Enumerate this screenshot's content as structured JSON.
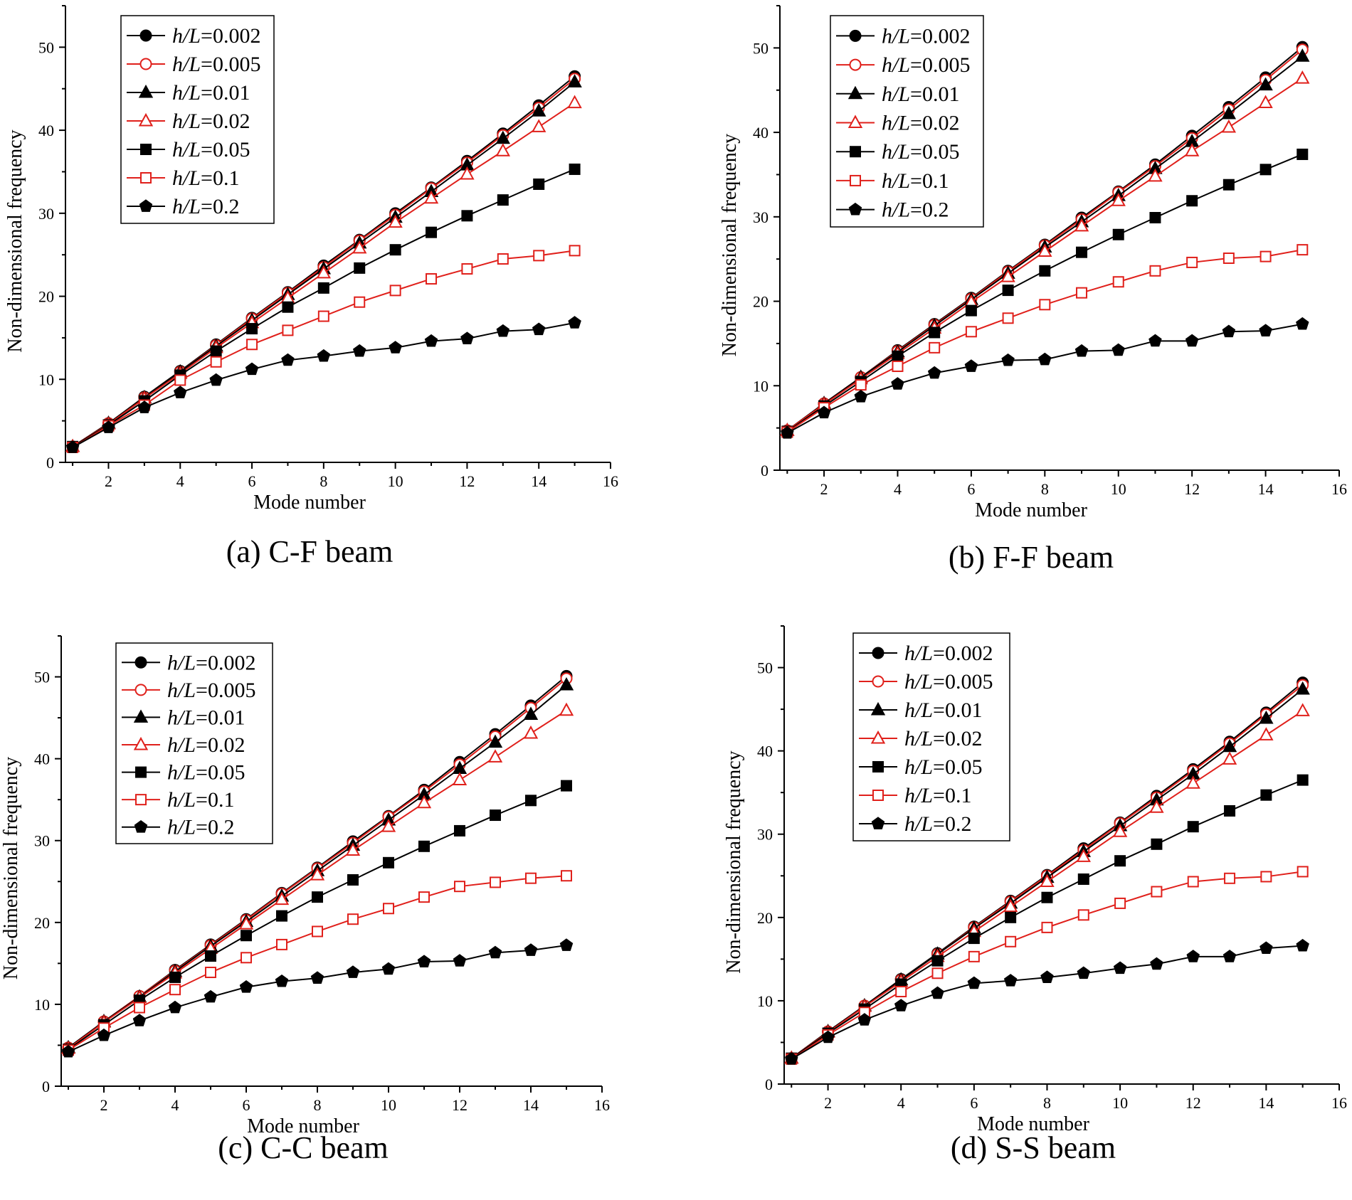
{
  "chart_data": [
    {
      "type": "line",
      "caption": "(a) C-F beam",
      "xlabel": "Mode number",
      "ylabel": "Non-dimensional frequency",
      "xlim": [
        0.8,
        16
      ],
      "ylim": [
        0,
        55
      ],
      "xticks": [
        2,
        4,
        6,
        8,
        10,
        12,
        14,
        16
      ],
      "yticks": [
        0,
        10,
        20,
        30,
        40,
        50
      ],
      "legend_position": "top-left",
      "x": [
        1,
        2,
        3,
        4,
        5,
        6,
        7,
        8,
        9,
        10,
        11,
        12,
        13,
        14,
        15
      ],
      "series": [
        {
          "name_prefix": "h/L",
          "name_value": "=0.002",
          "color": "#000000",
          "marker": "circle",
          "filled": true,
          "values": [
            1.9,
            4.7,
            7.9,
            11.0,
            14.2,
            17.4,
            20.5,
            23.7,
            26.8,
            30.0,
            33.1,
            36.3,
            39.6,
            43.0,
            46.5
          ]
        },
        {
          "name_prefix": "h/L",
          "name_value": "=0.005",
          "color": "#e0201b",
          "marker": "circle",
          "filled": false,
          "values": [
            1.9,
            4.7,
            7.8,
            10.9,
            14.1,
            17.3,
            20.4,
            23.5,
            26.7,
            29.8,
            33.0,
            36.1,
            39.4,
            42.7,
            46.2
          ]
        },
        {
          "name_prefix": "h/L",
          "name_value": "=0.01",
          "color": "#000000",
          "marker": "triangle",
          "filled": true,
          "values": [
            1.9,
            4.7,
            7.8,
            10.9,
            14.0,
            17.1,
            20.2,
            23.3,
            26.4,
            29.5,
            32.6,
            35.8,
            39.0,
            42.3,
            45.8
          ]
        },
        {
          "name_prefix": "h/L",
          "name_value": "=0.02",
          "color": "#e0201b",
          "marker": "triangle",
          "filled": false,
          "values": [
            1.9,
            4.6,
            7.7,
            10.7,
            13.8,
            16.8,
            19.8,
            22.8,
            25.8,
            28.9,
            31.8,
            34.7,
            37.5,
            40.4,
            43.3
          ]
        },
        {
          "name_prefix": "h/L",
          "name_value": "=0.05",
          "color": "#000000",
          "marker": "square",
          "filled": true,
          "values": [
            1.9,
            4.5,
            7.4,
            10.5,
            13.4,
            16.1,
            18.7,
            21.0,
            23.4,
            25.6,
            27.7,
            29.7,
            31.6,
            33.5,
            35.3
          ]
        },
        {
          "name_prefix": "h/L",
          "name_value": "=0.1",
          "color": "#e0201b",
          "marker": "square",
          "filled": false,
          "values": [
            1.8,
            4.4,
            6.9,
            9.9,
            12.1,
            14.2,
            15.9,
            17.6,
            19.3,
            20.7,
            22.1,
            23.3,
            24.5,
            24.9,
            25.5
          ]
        },
        {
          "name_prefix": "h/L",
          "name_value": "=0.2",
          "color": "#000000",
          "marker": "pentagon",
          "filled": true,
          "values": [
            1.8,
            4.2,
            6.6,
            8.4,
            9.9,
            11.2,
            12.3,
            12.8,
            13.4,
            13.8,
            14.6,
            14.9,
            15.8,
            16.0,
            16.8
          ]
        }
      ]
    },
    {
      "type": "line",
      "caption": "(b) F-F beam",
      "xlabel": "Mode number",
      "ylabel": "Non-dimensional frequency",
      "xlim": [
        0.8,
        16
      ],
      "ylim": [
        0,
        55
      ],
      "xticks": [
        2,
        4,
        6,
        8,
        10,
        12,
        14,
        16
      ],
      "yticks": [
        0,
        10,
        20,
        30,
        40,
        50
      ],
      "legend_position": "top-left",
      "x": [
        1,
        2,
        3,
        4,
        5,
        6,
        7,
        8,
        9,
        10,
        11,
        12,
        13,
        14,
        15
      ],
      "series": [
        {
          "name_prefix": "h/L",
          "name_value": "=0.002",
          "color": "#000000",
          "marker": "circle",
          "filled": true,
          "values": [
            4.7,
            7.9,
            11.0,
            14.2,
            17.3,
            20.4,
            23.6,
            26.7,
            29.9,
            33.0,
            36.2,
            39.6,
            43.0,
            46.5,
            50.1
          ]
        },
        {
          "name_prefix": "h/L",
          "name_value": "=0.005",
          "color": "#e0201b",
          "marker": "circle",
          "filled": false,
          "values": [
            4.7,
            7.9,
            11.0,
            14.1,
            17.2,
            20.3,
            23.5,
            26.6,
            29.7,
            32.9,
            36.0,
            39.3,
            42.7,
            46.2,
            49.8
          ]
        },
        {
          "name_prefix": "h/L",
          "name_value": "=0.01",
          "color": "#000000",
          "marker": "triangle",
          "filled": true,
          "values": [
            4.7,
            7.9,
            11.0,
            14.0,
            17.1,
            20.2,
            23.3,
            26.4,
            29.4,
            32.5,
            35.7,
            38.9,
            42.2,
            45.6,
            49.0
          ]
        },
        {
          "name_prefix": "h/L",
          "name_value": "=0.02",
          "color": "#e0201b",
          "marker": "triangle",
          "filled": false,
          "values": [
            4.7,
            7.8,
            10.8,
            13.8,
            16.8,
            19.9,
            22.9,
            25.9,
            28.9,
            31.9,
            34.8,
            37.8,
            40.6,
            43.5,
            46.4
          ]
        },
        {
          "name_prefix": "h/L",
          "name_value": "=0.05",
          "color": "#000000",
          "marker": "square",
          "filled": true,
          "values": [
            4.6,
            7.6,
            10.5,
            13.5,
            16.3,
            18.9,
            21.3,
            23.6,
            25.8,
            27.9,
            29.9,
            31.9,
            33.8,
            35.6,
            37.4
          ]
        },
        {
          "name_prefix": "h/L",
          "name_value": "=0.1",
          "color": "#e0201b",
          "marker": "square",
          "filled": false,
          "values": [
            4.5,
            7.4,
            10.1,
            12.3,
            14.5,
            16.4,
            18.0,
            19.6,
            21.0,
            22.3,
            23.6,
            24.6,
            25.1,
            25.3,
            26.1
          ]
        },
        {
          "name_prefix": "h/L",
          "name_value": "=0.2",
          "color": "#000000",
          "marker": "pentagon",
          "filled": true,
          "values": [
            4.4,
            6.8,
            8.7,
            10.2,
            11.5,
            12.3,
            13.0,
            13.1,
            14.1,
            14.2,
            15.3,
            15.3,
            16.4,
            16.5,
            17.3
          ]
        }
      ]
    },
    {
      "type": "line",
      "caption": "(c) C-C beam",
      "xlabel": "Mode number",
      "ylabel": "Non-dimensional frequency",
      "xlim": [
        0.8,
        16
      ],
      "ylim": [
        0,
        55
      ],
      "xticks": [
        2,
        4,
        6,
        8,
        10,
        12,
        14,
        16
      ],
      "yticks": [
        0,
        10,
        20,
        30,
        40,
        50
      ],
      "legend_position": "top-left",
      "x": [
        1,
        2,
        3,
        4,
        5,
        6,
        7,
        8,
        9,
        10,
        11,
        12,
        13,
        14,
        15
      ],
      "series": [
        {
          "name_prefix": "h/L",
          "name_value": "=0.002",
          "color": "#000000",
          "marker": "circle",
          "filled": true,
          "values": [
            4.7,
            7.9,
            11.0,
            14.2,
            17.3,
            20.4,
            23.6,
            26.7,
            29.9,
            33.0,
            36.2,
            39.6,
            43.0,
            46.5,
            50.1
          ]
        },
        {
          "name_prefix": "h/L",
          "name_value": "=0.005",
          "color": "#e0201b",
          "marker": "circle",
          "filled": false,
          "values": [
            4.7,
            7.9,
            11.0,
            14.1,
            17.2,
            20.3,
            23.5,
            26.6,
            29.7,
            32.9,
            36.0,
            39.3,
            42.7,
            46.2,
            49.8
          ]
        },
        {
          "name_prefix": "h/L",
          "name_value": "=0.01",
          "color": "#000000",
          "marker": "triangle",
          "filled": true,
          "values": [
            4.7,
            7.9,
            10.9,
            14.0,
            17.1,
            20.1,
            23.2,
            26.3,
            29.4,
            32.5,
            35.6,
            38.8,
            42.0,
            45.4,
            49.0
          ]
        },
        {
          "name_prefix": "h/L",
          "name_value": "=0.02",
          "color": "#e0201b",
          "marker": "triangle",
          "filled": false,
          "values": [
            4.6,
            7.8,
            10.8,
            13.8,
            16.8,
            19.8,
            22.8,
            25.8,
            28.8,
            31.7,
            34.6,
            37.4,
            40.2,
            43.1,
            45.9
          ]
        },
        {
          "name_prefix": "h/L",
          "name_value": "=0.05",
          "color": "#000000",
          "marker": "square",
          "filled": true,
          "values": [
            4.5,
            7.5,
            10.5,
            13.3,
            15.9,
            18.4,
            20.8,
            23.1,
            25.2,
            27.3,
            29.3,
            31.2,
            33.1,
            34.9,
            36.7
          ]
        },
        {
          "name_prefix": "h/L",
          "name_value": "=0.1",
          "color": "#e0201b",
          "marker": "square",
          "filled": false,
          "values": [
            4.4,
            7.1,
            9.6,
            11.8,
            13.9,
            15.7,
            17.3,
            18.9,
            20.4,
            21.7,
            23.1,
            24.4,
            24.9,
            25.4,
            25.7
          ]
        },
        {
          "name_prefix": "h/L",
          "name_value": "=0.2",
          "color": "#000000",
          "marker": "pentagon",
          "filled": true,
          "values": [
            4.2,
            6.2,
            8.0,
            9.6,
            10.9,
            12.1,
            12.8,
            13.2,
            13.9,
            14.3,
            15.2,
            15.3,
            16.3,
            16.6,
            17.2
          ]
        }
      ]
    },
    {
      "type": "line",
      "caption": "(d) S-S beam",
      "xlabel": "Mode number",
      "ylabel": "Non-dimensional frequency",
      "xlim": [
        0.8,
        16
      ],
      "ylim": [
        0,
        55
      ],
      "xticks": [
        2,
        4,
        6,
        8,
        10,
        12,
        14,
        16
      ],
      "yticks": [
        0,
        10,
        20,
        30,
        40,
        50
      ],
      "legend_position": "top-left",
      "x": [
        1,
        2,
        3,
        4,
        5,
        6,
        7,
        8,
        9,
        10,
        11,
        12,
        13,
        14,
        15
      ],
      "series": [
        {
          "name_prefix": "h/L",
          "name_value": "=0.002",
          "color": "#000000",
          "marker": "circle",
          "filled": true,
          "values": [
            3.1,
            6.3,
            9.4,
            12.6,
            15.7,
            18.9,
            22.0,
            25.1,
            28.3,
            31.4,
            34.6,
            37.8,
            41.1,
            44.6,
            48.2
          ]
        },
        {
          "name_prefix": "h/L",
          "name_value": "=0.005",
          "color": "#e0201b",
          "marker": "circle",
          "filled": false,
          "values": [
            3.1,
            6.3,
            9.4,
            12.5,
            15.6,
            18.8,
            21.9,
            25.0,
            28.1,
            31.3,
            34.4,
            37.6,
            40.9,
            44.4,
            47.9
          ]
        },
        {
          "name_prefix": "h/L",
          "name_value": "=0.01",
          "color": "#000000",
          "marker": "triangle",
          "filled": true,
          "values": [
            3.1,
            6.3,
            9.4,
            12.5,
            15.6,
            18.7,
            21.7,
            24.8,
            27.9,
            31.0,
            34.1,
            37.2,
            40.5,
            43.9,
            47.4
          ]
        },
        {
          "name_prefix": "h/L",
          "name_value": "=0.02",
          "color": "#e0201b",
          "marker": "triangle",
          "filled": false,
          "values": [
            3.1,
            6.2,
            9.3,
            12.3,
            15.3,
            18.3,
            21.3,
            24.3,
            27.3,
            30.3,
            33.2,
            36.1,
            39.0,
            41.9,
            44.8
          ]
        },
        {
          "name_prefix": "h/L",
          "name_value": "=0.05",
          "color": "#000000",
          "marker": "square",
          "filled": true,
          "values": [
            3.1,
            6.1,
            9.0,
            12.0,
            14.8,
            17.5,
            20.0,
            22.4,
            24.6,
            26.8,
            28.8,
            30.9,
            32.8,
            34.7,
            36.5
          ]
        },
        {
          "name_prefix": "h/L",
          "name_value": "=0.1",
          "color": "#e0201b",
          "marker": "square",
          "filled": false,
          "values": [
            3.0,
            5.9,
            8.6,
            11.1,
            13.3,
            15.3,
            17.1,
            18.8,
            20.3,
            21.7,
            23.1,
            24.3,
            24.7,
            24.9,
            25.5
          ]
        },
        {
          "name_prefix": "h/L",
          "name_value": "=0.2",
          "color": "#000000",
          "marker": "pentagon",
          "filled": true,
          "values": [
            3.0,
            5.6,
            7.7,
            9.4,
            10.9,
            12.1,
            12.4,
            12.8,
            13.3,
            13.9,
            14.4,
            15.3,
            15.3,
            16.3,
            16.6
          ]
        }
      ]
    }
  ]
}
